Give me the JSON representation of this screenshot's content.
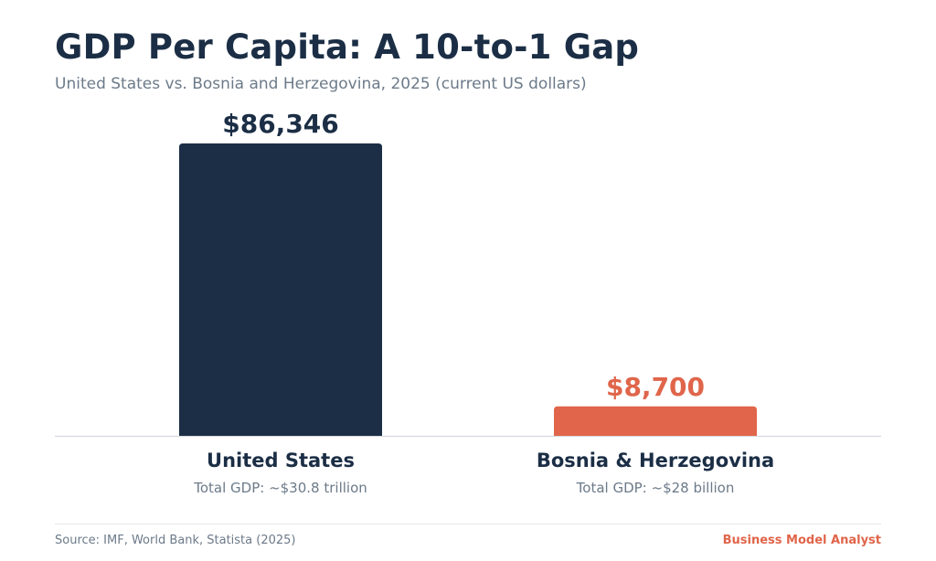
{
  "header": {
    "title": "GDP Per Capita: A 10-to-1 Gap",
    "subtitle": "United States vs. Bosnia and Herzegovina, 2025 (current US dollars)"
  },
  "colors": {
    "primary": "#1b2e45",
    "accent": "#e0654a",
    "muted": "#6c7a89",
    "axis": "#d5d9de"
  },
  "chart_data": {
    "type": "bar",
    "categories": [
      "United States",
      "Bosnia & Herzegovina"
    ],
    "values": [
      86346,
      8700
    ],
    "value_labels": [
      "$86,346",
      "$8,700"
    ],
    "sublabels": [
      "Total GDP: ~$30.8 trillion",
      "Total GDP: ~$28 billion"
    ],
    "bar_colors": [
      "#1b2e45",
      "#e0654a"
    ],
    "title": "GDP Per Capita: A 10-to-1 Gap",
    "subtitle": "United States vs. Bosnia and Herzegovina, 2025 (current US dollars)",
    "ylim": [
      0,
      86346
    ],
    "grid": false,
    "legend": "none"
  },
  "footer": {
    "source": "Source: IMF, World Bank, Statista (2025)",
    "brand": "Business Model Analyst"
  }
}
